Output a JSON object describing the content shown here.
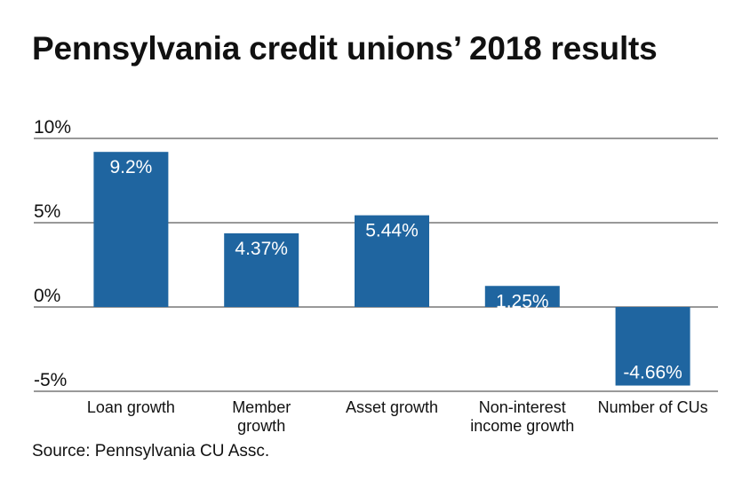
{
  "title": "Pennsylvania credit unions’ 2018 results",
  "source": "Source: Pennsylvania CU Assc.",
  "colors": {
    "bar": "#1f65a0",
    "grid": "#333333"
  },
  "chart_data": {
    "type": "bar",
    "title": "Pennsylvania credit unions’ 2018 results",
    "categories": [
      [
        "Loan growth"
      ],
      [
        "Member",
        "growth"
      ],
      [
        "Asset growth"
      ],
      [
        "Non-interest",
        "income growth"
      ],
      [
        "Number of CUs"
      ]
    ],
    "values": [
      9.2,
      4.37,
      5.44,
      1.25,
      -4.66
    ],
    "value_labels": [
      "9.2%",
      "4.37%",
      "5.44%",
      "1.25%",
      "-4.66%"
    ],
    "yticks": [
      10,
      5,
      0,
      -5
    ],
    "ytick_labels": [
      "10%",
      "5%",
      "0%",
      "-5%"
    ],
    "ylim": [
      -5,
      10
    ],
    "grid": true,
    "legend": "none"
  }
}
